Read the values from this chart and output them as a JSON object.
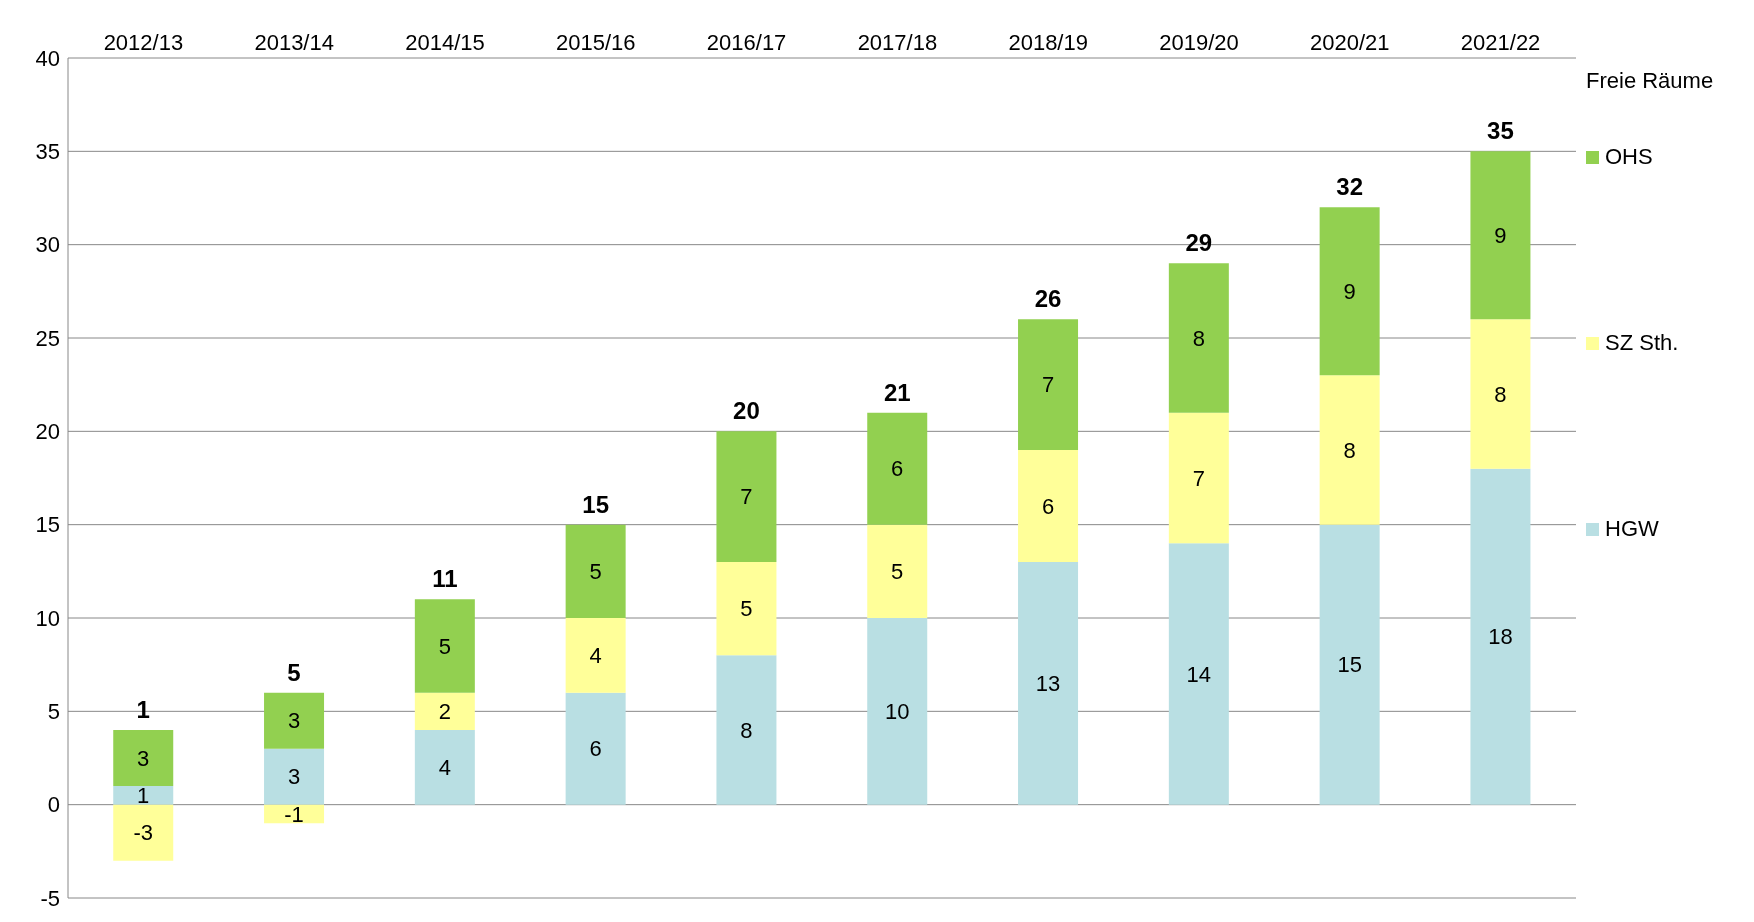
{
  "chart_data": {
    "type": "bar",
    "stacked": true,
    "legend_title": "Freie Räume",
    "categories": [
      "2012/13",
      "2013/14",
      "2014/15",
      "2015/16",
      "2016/17",
      "2017/18",
      "2018/19",
      "2019/20",
      "2020/21",
      "2021/22"
    ],
    "series": [
      {
        "name": "HGW",
        "color": "#b9dfe3",
        "values": [
          1,
          3,
          4,
          6,
          8,
          10,
          13,
          14,
          15,
          18
        ]
      },
      {
        "name": "SZ Sth.",
        "color": "#ffff99",
        "values": [
          -3,
          -1,
          2,
          4,
          5,
          5,
          6,
          7,
          8,
          8
        ]
      },
      {
        "name": "OHS",
        "color": "#92d050",
        "values": [
          3,
          3,
          5,
          5,
          7,
          6,
          7,
          8,
          9,
          9
        ]
      }
    ],
    "totals": [
      "1",
      "5",
      "11",
      "15",
      "20",
      "21",
      "26",
      "29",
      "32",
      "35"
    ],
    "ylim": [
      -5,
      40
    ],
    "yticks": [
      -5,
      0,
      5,
      10,
      15,
      20,
      25,
      30,
      35,
      40
    ],
    "grid": "y",
    "legend": "right",
    "data_labels": true
  }
}
